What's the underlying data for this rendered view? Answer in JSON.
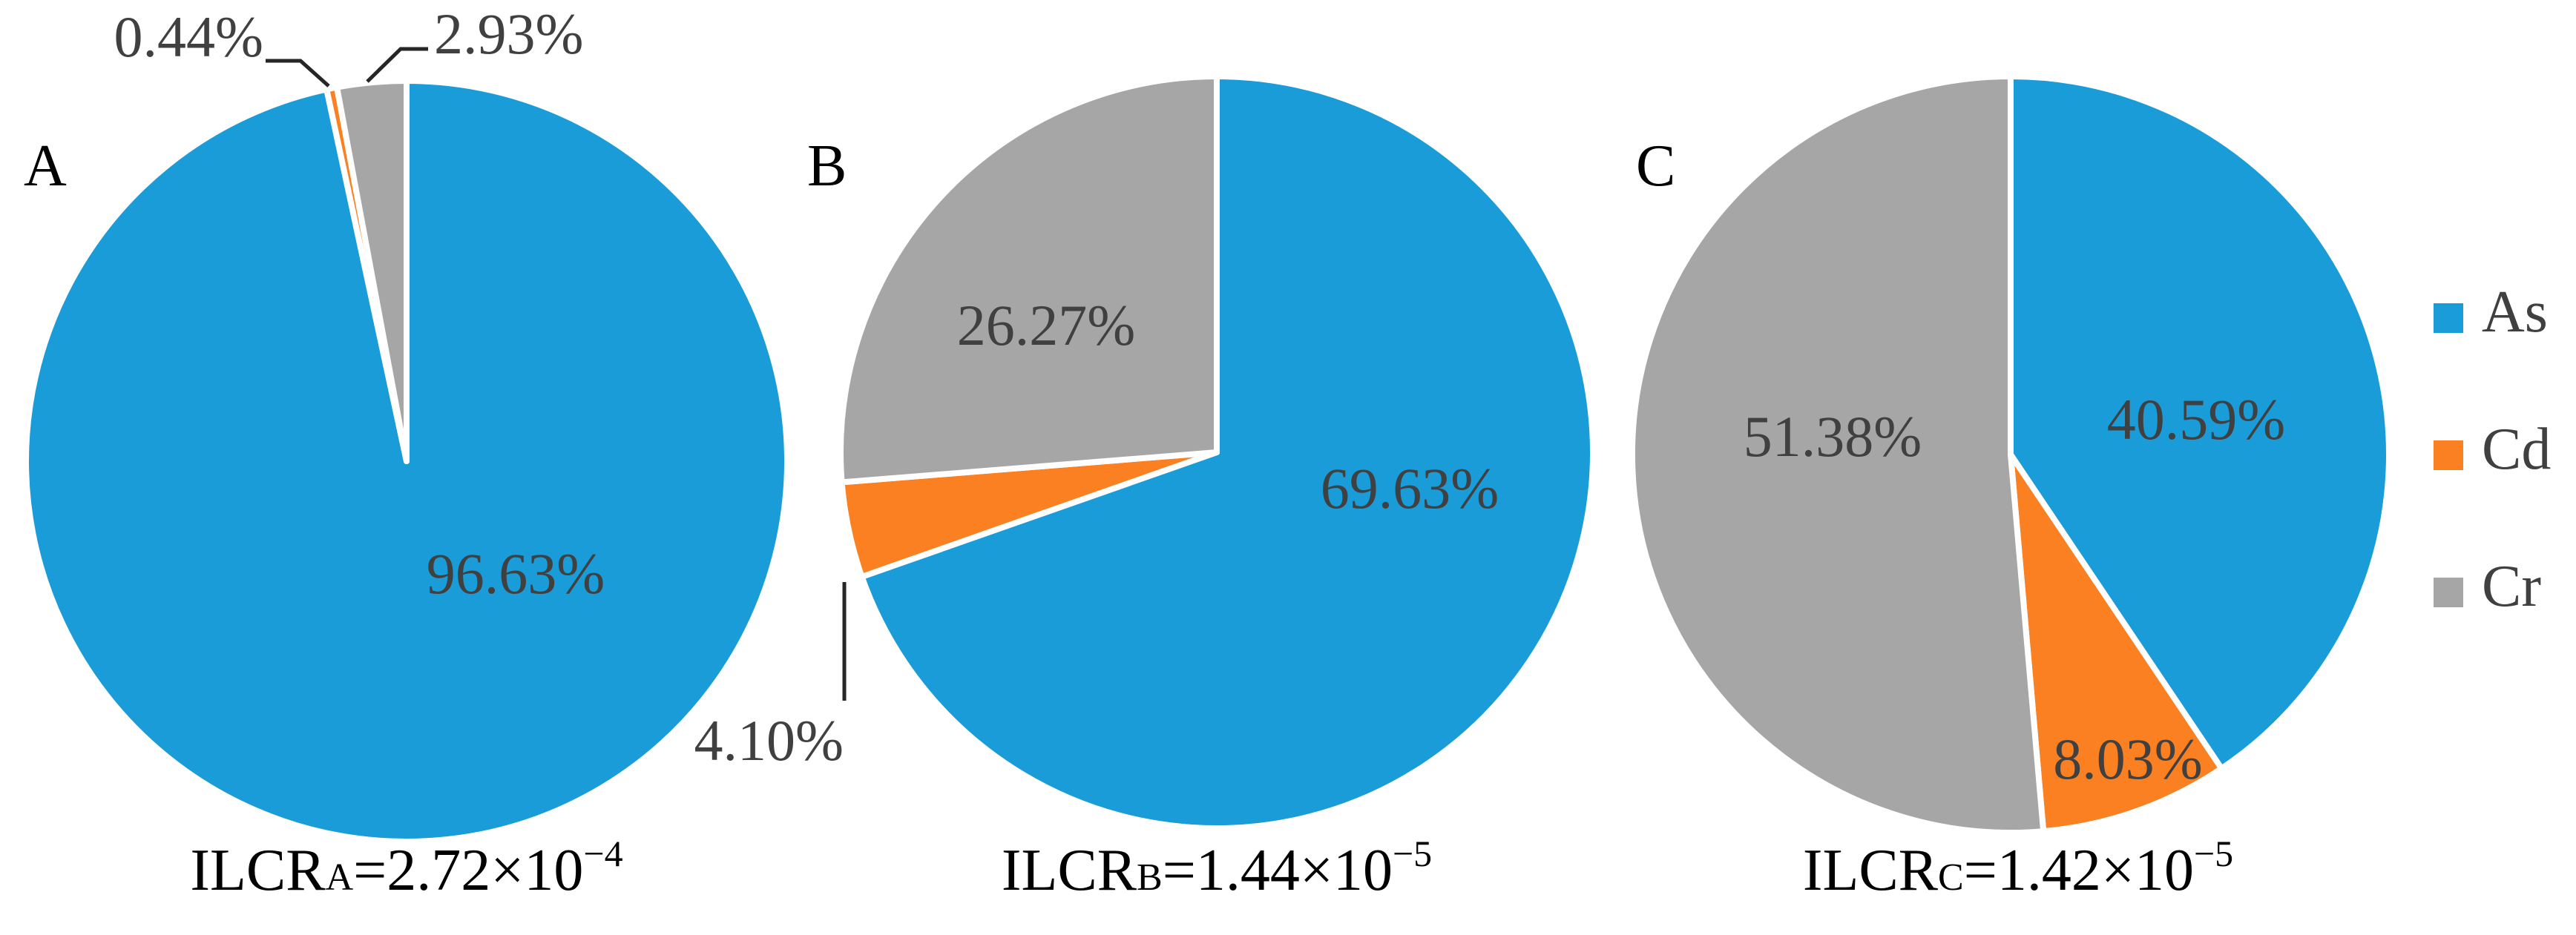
{
  "chart_data": [
    {
      "type": "pie",
      "panel_label": "A",
      "ilcr": {
        "prefix": "ILCR",
        "subscript": "A",
        "value": "=2.72×10",
        "exponent": "−4"
      },
      "slices": [
        {
          "name": "As",
          "value": 96.63,
          "label": "96.63%"
        },
        {
          "name": "Cd",
          "value": 0.44,
          "label": "0.44%"
        },
        {
          "name": "Cr",
          "value": 2.93,
          "label": "2.93%"
        }
      ]
    },
    {
      "type": "pie",
      "panel_label": "B",
      "ilcr": {
        "prefix": "ILCR",
        "subscript": "B",
        "value": "=1.44×10",
        "exponent": "−5"
      },
      "slices": [
        {
          "name": "As",
          "value": 69.63,
          "label": "69.63%"
        },
        {
          "name": "Cd",
          "value": 4.1,
          "label": "4.10%"
        },
        {
          "name": "Cr",
          "value": 26.27,
          "label": "26.27%"
        }
      ]
    },
    {
      "type": "pie",
      "panel_label": "C",
      "ilcr": {
        "prefix": "ILCR",
        "subscript": "C",
        "value": "=1.42×10",
        "exponent": "−5"
      },
      "slices": [
        {
          "name": "As",
          "value": 40.59,
          "label": "40.59%"
        },
        {
          "name": "Cd",
          "value": 8.03,
          "label": "8.03%"
        },
        {
          "name": "Cr",
          "value": 51.38,
          "label": "51.38%"
        }
      ]
    }
  ],
  "legend": [
    {
      "name": "As",
      "label": "As",
      "color": "#1a9cd8"
    },
    {
      "name": "Cd",
      "label": "Cd",
      "color": "#fa8022"
    },
    {
      "name": "Cr",
      "label": "Cr",
      "color": "#a6a6a6"
    }
  ]
}
